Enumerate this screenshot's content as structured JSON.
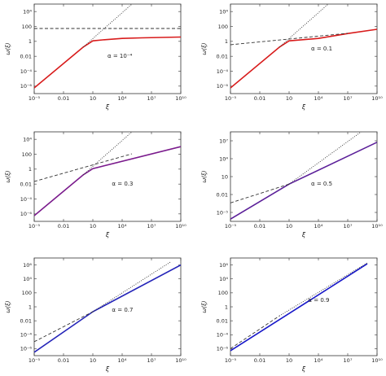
{
  "figure": {
    "panel_count": 6,
    "layout": "3 rows x 2 columns"
  },
  "chart_data": [
    {
      "type": "line",
      "panel": "top-left",
      "annotation": "α = 10⁻⁴",
      "xlabel": "ξ",
      "ylabel": "ω(ξ)",
      "x_scale": "log",
      "y_scale": "log",
      "xlim": [
        1e-05,
        10000000000.0
      ],
      "ylim": [
        1e-06,
        100000.0
      ],
      "x_ticks": [
        "10⁻⁵",
        "0.01",
        "10",
        "10⁴",
        "10⁷",
        "10¹⁰"
      ],
      "y_ticks": [
        "10⁻⁶",
        "10⁻⁴",
        "0.01",
        "1",
        "100",
        "10⁴"
      ],
      "series": [
        {
          "style": "solid",
          "color": "#d81b1b",
          "x": [
            1e-05,
            0.1,
            1,
            10,
            100,
            10000.0,
            1000000.0,
            100000000.0,
            10000000000.0
          ],
          "y": [
            5e-06,
            0.05,
            0.5,
            3,
            4,
            6,
            7,
            8,
            9
          ]
        },
        {
          "style": "dashed",
          "color": "#333333",
          "x": [
            1e-05,
            10000000000.0
          ],
          "y": [
            100,
            100
          ]
        },
        {
          "style": "dotted",
          "color": "#333333",
          "x": [
            1,
            100000.0
          ],
          "y": [
            0.5,
            100000.0
          ]
        }
      ]
    },
    {
      "type": "line",
      "panel": "top-right",
      "annotation": "α = 0.1",
      "xlabel": "ξ",
      "ylabel": "ω(ξ)",
      "x_scale": "log",
      "y_scale": "log",
      "xlim": [
        1e-05,
        10000000000.0
      ],
      "ylim": [
        1e-06,
        100000.0
      ],
      "x_ticks": [
        "10⁻⁵",
        "0.01",
        "10",
        "10⁴",
        "10⁷",
        "10¹⁰"
      ],
      "y_ticks": [
        "10⁻⁶",
        "10⁻⁴",
        "0.01",
        "1",
        "100",
        "10⁴"
      ],
      "series": [
        {
          "style": "solid",
          "color": "#d81b1b",
          "x": [
            1e-05,
            1,
            10,
            10000.0,
            10000000.0,
            10000000000.0
          ],
          "y": [
            5e-06,
            0.5,
            3,
            6,
            24,
            80
          ]
        },
        {
          "style": "dashed",
          "color": "#333333",
          "x": [
            1e-05,
            10000000.0
          ],
          "y": [
            1,
            26
          ]
        },
        {
          "style": "dotted",
          "color": "#333333",
          "x": [
            1,
            100000.0
          ],
          "y": [
            0.5,
            100000.0
          ]
        }
      ]
    },
    {
      "type": "line",
      "panel": "middle-left",
      "annotation": "α = 0.3",
      "xlabel": "ξ",
      "ylabel": "ω(ξ)",
      "x_scale": "log",
      "y_scale": "log",
      "xlim": [
        1e-05,
        10000000000.0
      ],
      "ylim": [
        1e-06,
        100000.0
      ],
      "x_ticks": [
        "10⁻⁵",
        "0.01",
        "10",
        "10⁴",
        "10⁷",
        "10¹⁰"
      ],
      "y_ticks": [
        "10⁻⁶",
        "10⁻⁴",
        "0.01",
        "1",
        "100",
        "10⁴"
      ],
      "series": [
        {
          "style": "solid",
          "color": "#7a1a8c",
          "x": [
            1e-05,
            1,
            10,
            10000000000.0
          ],
          "y": [
            5e-06,
            0.5,
            3,
            1500
          ]
        },
        {
          "style": "dashed",
          "color": "#333333",
          "x": [
            1e-05,
            100000.0
          ],
          "y": [
            0.08,
            200
          ]
        },
        {
          "style": "dotted",
          "color": "#333333",
          "x": [
            1,
            100000.0
          ],
          "y": [
            0.5,
            100000.0
          ]
        }
      ]
    },
    {
      "type": "line",
      "panel": "middle-right",
      "annotation": "α = 0.5",
      "xlabel": "ξ",
      "ylabel": "ω(ξ)",
      "x_scale": "log",
      "y_scale": "log",
      "xlim": [
        1e-05,
        10000000000.0
      ],
      "ylim": [
        1e-05,
        10000000.0
      ],
      "x_ticks": [
        "10⁻⁵",
        "0.01",
        "10",
        "10⁴",
        "10⁷",
        "10¹⁰"
      ],
      "y_ticks": [
        "10⁻⁵",
        "0.01",
        "10",
        "10⁴",
        "10⁷"
      ],
      "series": [
        {
          "style": "solid",
          "color": "#5b1f99",
          "x": [
            1e-05,
            10,
            10000000000.0
          ],
          "y": [
            2e-05,
            1,
            400000.0
          ]
        },
        {
          "style": "dashed",
          "color": "#333333",
          "x": [
            1e-05,
            10
          ],
          "y": [
            0.003,
            1
          ]
        },
        {
          "style": "dotted",
          "color": "#333333",
          "x": [
            10,
            1000000000.0
          ],
          "y": [
            1,
            40000000.0
          ]
        }
      ]
    },
    {
      "type": "line",
      "panel": "bottom-left",
      "annotation": "α = 0.7",
      "xlabel": "ξ",
      "ylabel": "ω(ξ)",
      "x_scale": "log",
      "y_scale": "log",
      "xlim": [
        1e-05,
        10000000000.0
      ],
      "ylim": [
        1e-06,
        100000000.0
      ],
      "x_ticks": [
        "10⁻⁵",
        "0.01",
        "10",
        "10⁴",
        "10⁷",
        "10¹⁰"
      ],
      "y_ticks": [
        "10⁻⁶",
        "10⁻⁴",
        "0.01",
        "1",
        "100",
        "10⁴",
        "10⁶"
      ],
      "series": [
        {
          "style": "solid",
          "color": "#2424b8",
          "x": [
            1e-05,
            10,
            10000000000.0
          ],
          "y": [
            3e-06,
            2,
            10000000.0
          ]
        },
        {
          "style": "dashed",
          "color": "#333333",
          "x": [
            1e-05,
            10
          ],
          "y": [
            0.0001,
            2
          ]
        },
        {
          "style": "dotted",
          "color": "#333333",
          "x": [
            10,
            1000000000.0
          ],
          "y": [
            2,
            30000000.0
          ]
        }
      ]
    },
    {
      "type": "line",
      "panel": "bottom-right",
      "annotation": "α = 0.9",
      "xlabel": "ξ",
      "ylabel": "ω(ξ)",
      "x_scale": "log",
      "y_scale": "log",
      "xlim": [
        1e-05,
        10000000000.0
      ],
      "ylim": [
        1e-06,
        100000000.0
      ],
      "x_ticks": [
        "10⁻⁵",
        "0.01",
        "10",
        "10⁴",
        "10⁷",
        "10¹⁰"
      ],
      "y_ticks": [
        "10⁻⁶",
        "10⁻⁴",
        "0.01",
        "1",
        "100",
        "10⁴",
        "10⁶"
      ],
      "series": [
        {
          "style": "solid",
          "color": "#1616c8",
          "x": [
            1e-05,
            1000000000.0
          ],
          "y": [
            5e-06,
            15000000.0
          ]
        },
        {
          "style": "dashed",
          "color": "#333333",
          "x": [
            1e-05,
            1
          ],
          "y": [
            1e-05,
            0.5
          ]
        },
        {
          "style": "dotted",
          "color": "#333333",
          "x": [
            1,
            1000000000.0
          ],
          "y": [
            0.5,
            20000000.0
          ]
        }
      ]
    }
  ]
}
